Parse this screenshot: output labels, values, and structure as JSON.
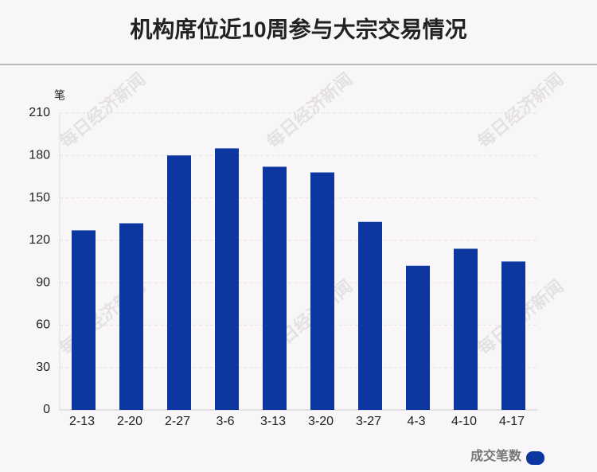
{
  "chart_data": {
    "type": "bar",
    "title": "机构席位近10周参与大宗交易情况",
    "y_unit": "笔",
    "watermark": "每日经济新闻",
    "categories": [
      "2-13",
      "2-20",
      "2-27",
      "3-6",
      "3-13",
      "3-20",
      "3-27",
      "4-3",
      "4-10",
      "4-17"
    ],
    "series": [
      {
        "name": "成交笔数",
        "color": "#0c36a0",
        "values": [
          127,
          132,
          180,
          185,
          172,
          168,
          133,
          102,
          114,
          105
        ]
      }
    ],
    "ylim": [
      0,
      210
    ],
    "yticks": [
      0,
      30,
      60,
      90,
      120,
      150,
      180,
      210
    ],
    "grid": true,
    "legend": "bottom-right"
  }
}
